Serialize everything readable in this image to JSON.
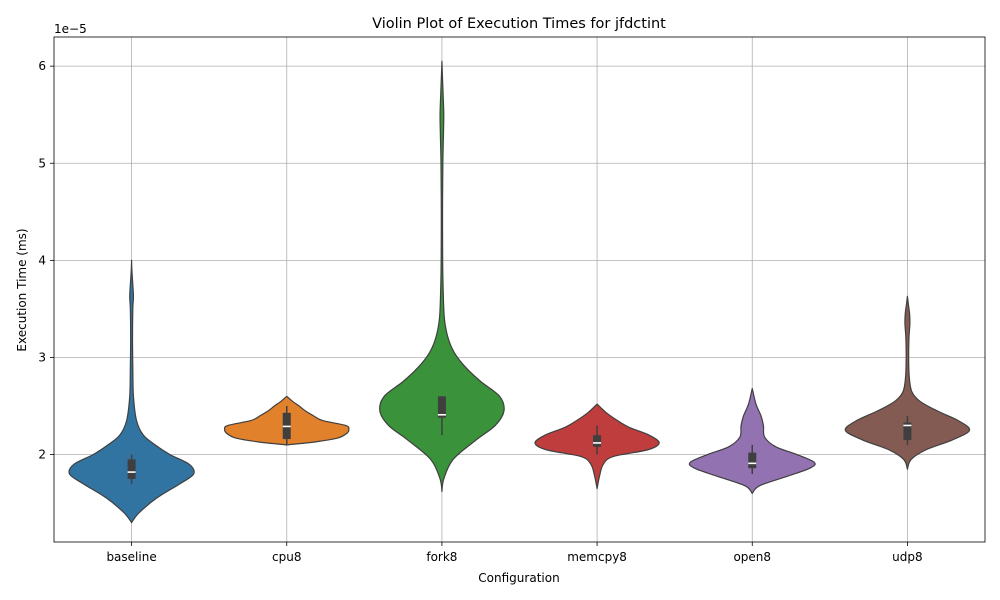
{
  "chart_data": {
    "type": "violin",
    "title": "Violin Plot of Execution Times for jfdctint",
    "xlabel": "Configuration",
    "ylabel": "Execution Time (ms)",
    "y_offset_label": "1e−5",
    "y_scale_exponent": -5,
    "ylim": [
      1.1,
      6.3
    ],
    "yticks": [
      2,
      3,
      4,
      5,
      6
    ],
    "grid": true,
    "categories": [
      "baseline",
      "cpu8",
      "fork8",
      "memcpy8",
      "open8",
      "udp8"
    ],
    "colors": [
      "#3274a1",
      "#e1812c",
      "#3a923a",
      "#c03d3e",
      "#9372b2",
      "#845b53"
    ],
    "series": [
      {
        "name": "baseline",
        "min": 1.3,
        "max": 4.0,
        "q1": 1.75,
        "median": 1.82,
        "q3": 1.95,
        "whisker_low": 1.7,
        "whisker_high": 2.0,
        "density": [
          [
            1.3,
            0
          ],
          [
            1.4,
            0.12
          ],
          [
            1.55,
            0.4
          ],
          [
            1.7,
            0.78
          ],
          [
            1.8,
            1.0
          ],
          [
            1.9,
            0.93
          ],
          [
            2.0,
            0.62
          ],
          [
            2.1,
            0.38
          ],
          [
            2.2,
            0.19
          ],
          [
            2.35,
            0.08
          ],
          [
            2.6,
            0.03
          ],
          [
            2.9,
            0.02
          ],
          [
            3.2,
            0.015
          ],
          [
            3.5,
            0.02
          ],
          [
            3.62,
            0.03
          ],
          [
            3.75,
            0.02
          ],
          [
            3.9,
            0.005
          ],
          [
            4.0,
            0
          ]
        ]
      },
      {
        "name": "cpu8",
        "min": 2.1,
        "max": 2.6,
        "q1": 2.16,
        "median": 2.29,
        "q3": 2.43,
        "whisker_low": 2.1,
        "whisker_high": 2.5,
        "density": [
          [
            2.1,
            0
          ],
          [
            2.13,
            0.45
          ],
          [
            2.17,
            0.82
          ],
          [
            2.22,
            0.97
          ],
          [
            2.26,
            1.0
          ],
          [
            2.3,
            0.95
          ],
          [
            2.35,
            0.58
          ],
          [
            2.4,
            0.43
          ],
          [
            2.45,
            0.3
          ],
          [
            2.5,
            0.2
          ],
          [
            2.55,
            0.09
          ],
          [
            2.6,
            0
          ]
        ]
      },
      {
        "name": "fork8",
        "min": 1.62,
        "max": 6.05,
        "q1": 2.38,
        "median": 2.41,
        "q3": 2.6,
        "whisker_low": 2.2,
        "whisker_high": 2.6,
        "density": [
          [
            1.62,
            0
          ],
          [
            1.75,
            0.03
          ],
          [
            1.95,
            0.18
          ],
          [
            2.15,
            0.55
          ],
          [
            2.3,
            0.86
          ],
          [
            2.45,
            1.0
          ],
          [
            2.6,
            0.93
          ],
          [
            2.75,
            0.63
          ],
          [
            2.9,
            0.38
          ],
          [
            3.05,
            0.2
          ],
          [
            3.2,
            0.1
          ],
          [
            3.4,
            0.04
          ],
          [
            3.7,
            0.02
          ],
          [
            4.0,
            0.012
          ],
          [
            4.5,
            0.01
          ],
          [
            5.0,
            0.015
          ],
          [
            5.3,
            0.025
          ],
          [
            5.5,
            0.03
          ],
          [
            5.7,
            0.02
          ],
          [
            5.9,
            0.008
          ],
          [
            6.05,
            0
          ]
        ]
      },
      {
        "name": "memcpy8",
        "min": 1.65,
        "max": 2.52,
        "q1": 2.08,
        "median": 2.12,
        "q3": 2.2,
        "whisker_low": 2.0,
        "whisker_high": 2.3,
        "density": [
          [
            1.65,
            0
          ],
          [
            1.78,
            0.04
          ],
          [
            1.9,
            0.1
          ],
          [
            1.98,
            0.26
          ],
          [
            2.05,
            0.82
          ],
          [
            2.12,
            1.0
          ],
          [
            2.2,
            0.84
          ],
          [
            2.28,
            0.52
          ],
          [
            2.35,
            0.33
          ],
          [
            2.43,
            0.15
          ],
          [
            2.52,
            0
          ]
        ]
      },
      {
        "name": "open8",
        "min": 1.6,
        "max": 2.68,
        "q1": 1.86,
        "median": 1.91,
        "q3": 2.02,
        "whisker_low": 1.8,
        "whisker_high": 2.1,
        "density": [
          [
            1.6,
            0
          ],
          [
            1.68,
            0.12
          ],
          [
            1.78,
            0.58
          ],
          [
            1.86,
            0.93
          ],
          [
            1.92,
            1.0
          ],
          [
            2.0,
            0.72
          ],
          [
            2.08,
            0.38
          ],
          [
            2.18,
            0.2
          ],
          [
            2.3,
            0.18
          ],
          [
            2.4,
            0.14
          ],
          [
            2.52,
            0.06
          ],
          [
            2.68,
            0
          ]
        ]
      },
      {
        "name": "udp8",
        "min": 1.85,
        "max": 3.63,
        "q1": 2.15,
        "median": 2.3,
        "q3": 2.33,
        "whisker_low": 2.1,
        "whisker_high": 2.4,
        "density": [
          [
            1.85,
            0
          ],
          [
            1.95,
            0.06
          ],
          [
            2.05,
            0.3
          ],
          [
            2.15,
            0.72
          ],
          [
            2.25,
            1.0
          ],
          [
            2.35,
            0.82
          ],
          [
            2.45,
            0.48
          ],
          [
            2.55,
            0.2
          ],
          [
            2.65,
            0.07
          ],
          [
            2.8,
            0.03
          ],
          [
            3.0,
            0.02
          ],
          [
            3.2,
            0.025
          ],
          [
            3.35,
            0.04
          ],
          [
            3.45,
            0.035
          ],
          [
            3.55,
            0.015
          ],
          [
            3.63,
            0
          ]
        ]
      }
    ]
  }
}
